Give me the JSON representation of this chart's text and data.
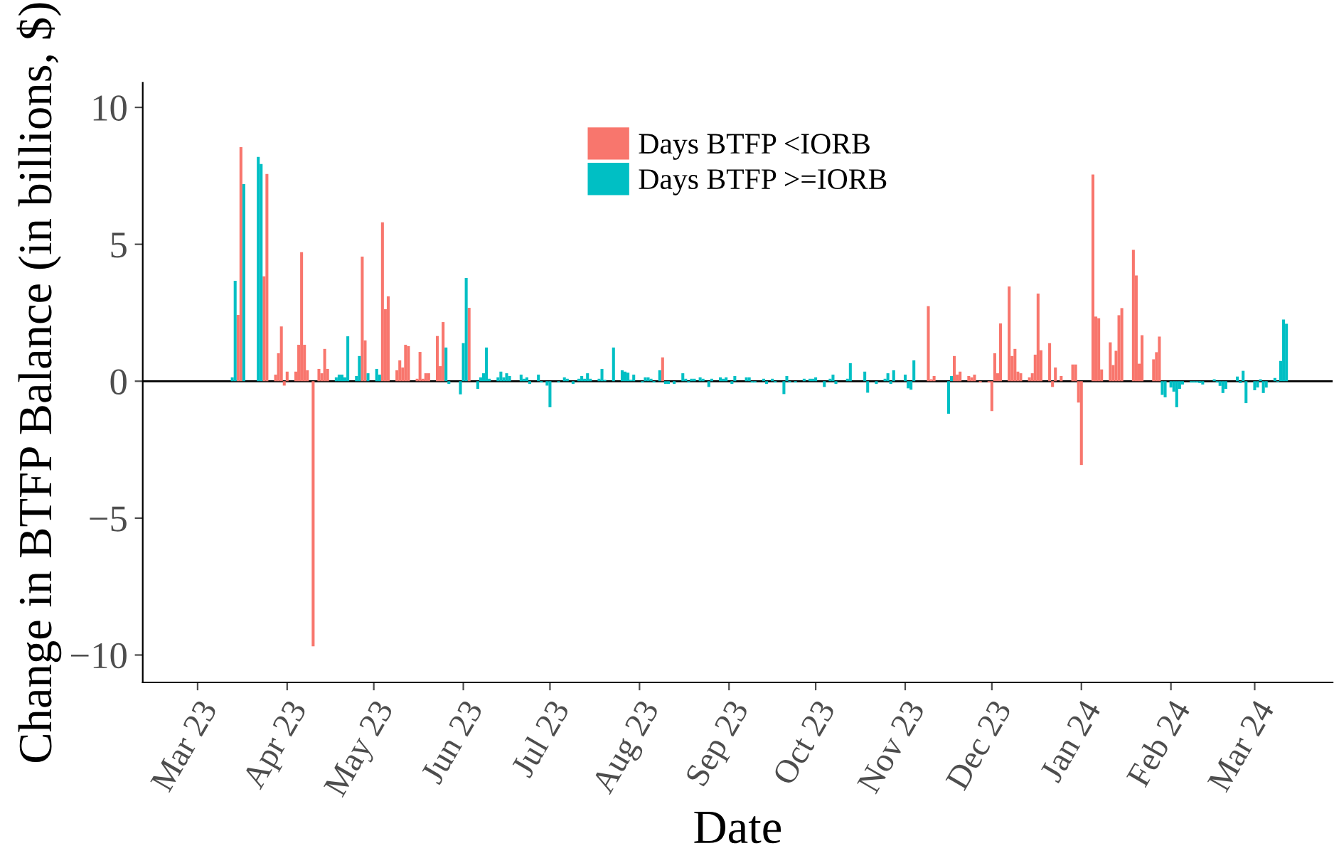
{
  "chart_data": {
    "type": "bar",
    "xlabel": "Date",
    "ylabel": "Change in BTFP Balance (in billions, $)",
    "xlim": [
      "2023-02-10",
      "2024-03-28"
    ],
    "ylim": [
      -11,
      10.9
    ],
    "yticks": [
      {
        "value": -10,
        "label": "−10"
      },
      {
        "value": -5,
        "label": "−5"
      },
      0,
      5,
      10
    ],
    "xticks": [
      {
        "value": "2023-03-01",
        "label": "Mar 23"
      },
      {
        "value": "2023-04-01",
        "label": "Apr 23"
      },
      {
        "value": "2023-05-01",
        "label": "May 23"
      },
      {
        "value": "2023-06-01",
        "label": "Jun 23"
      },
      {
        "value": "2023-07-01",
        "label": "Jul 23"
      },
      {
        "value": "2023-08-01",
        "label": "Aug 23"
      },
      {
        "value": "2023-09-01",
        "label": "Sep 23"
      },
      {
        "value": "2023-10-01",
        "label": "Oct 23"
      },
      {
        "value": "2023-11-01",
        "label": "Nov 23"
      },
      {
        "value": "2023-12-01",
        "label": "Dec 23"
      },
      {
        "value": "2024-01-01",
        "label": "Jan 24"
      },
      {
        "value": "2024-02-01",
        "label": "Feb 24"
      },
      {
        "value": "2024-03-01",
        "label": "Mar 24"
      }
    ],
    "grid": false,
    "legend": "top",
    "ref_lines": [
      {
        "axis": "y",
        "value": 0,
        "color": "#000000",
        "line_style": "solid"
      }
    ],
    "series": [
      {
        "name": "Days BTFP <IORB",
        "color": "#f8766d",
        "x": [
          "2023-03-15",
          "2023-03-16",
          "2023-03-24",
          "2023-03-25",
          "2023-03-28",
          "2023-03-29",
          "2023-03-30",
          "2023-03-31",
          "2023-04-01",
          "2023-04-04",
          "2023-04-05",
          "2023-04-06",
          "2023-04-07",
          "2023-04-08",
          "2023-04-10",
          "2023-04-12",
          "2023-04-13",
          "2023-04-14",
          "2023-04-15",
          "2023-04-27",
          "2023-04-28",
          "2023-05-04",
          "2023-05-05",
          "2023-05-06",
          "2023-05-09",
          "2023-05-10",
          "2023-05-11",
          "2023-05-12",
          "2023-05-13",
          "2023-05-16",
          "2023-05-17",
          "2023-05-18",
          "2023-05-19",
          "2023-05-20",
          "2023-05-23",
          "2023-05-24",
          "2023-05-25",
          "2023-06-03",
          "2023-08-09",
          "2023-11-09",
          "2023-11-10",
          "2023-11-11",
          "2023-11-18",
          "2023-11-19",
          "2023-11-20",
          "2023-11-23",
          "2023-11-24",
          "2023-11-25",
          "2023-11-27",
          "2023-11-30",
          "2023-12-01",
          "2023-12-02",
          "2023-12-03",
          "2023-12-04",
          "2023-12-07",
          "2023-12-08",
          "2023-12-09",
          "2023-12-10",
          "2023-12-11",
          "2023-12-14",
          "2023-12-15",
          "2023-12-16",
          "2023-12-17",
          "2023-12-18",
          "2023-12-21",
          "2023-12-22",
          "2023-12-23",
          "2023-12-25",
          "2023-12-29",
          "2023-12-30",
          "2023-12-31",
          "2024-01-01",
          "2024-01-05",
          "2024-01-06",
          "2024-01-07",
          "2024-01-08",
          "2024-01-11",
          "2024-01-12",
          "2024-01-13",
          "2024-01-14",
          "2024-01-15",
          "2024-01-19",
          "2024-01-20",
          "2024-01-21",
          "2024-01-22",
          "2024-01-26",
          "2024-01-27",
          "2024-01-28"
        ],
        "values": [
          2.42,
          8.55,
          3.83,
          7.57,
          0.24,
          1.02,
          2.0,
          -0.16,
          0.35,
          0.35,
          1.33,
          4.71,
          1.33,
          0.4,
          -9.68,
          0.45,
          0.29,
          1.18,
          0.45,
          4.55,
          1.49,
          5.8,
          2.63,
          3.1,
          0.4,
          0.76,
          0.5,
          1.33,
          1.28,
          0.09,
          1.07,
          0.09,
          0.29,
          0.29,
          1.65,
          0.55,
          2.16,
          2.68,
          0.87,
          2.74,
          0.07,
          0.19,
          0.92,
          0.24,
          0.35,
          0.19,
          0.14,
          0.24,
          -0.05,
          -0.05,
          -1.09,
          1.02,
          0.29,
          2.11,
          3.46,
          0.92,
          1.18,
          0.35,
          0.29,
          0.14,
          0.29,
          0.97,
          3.2,
          1.13,
          1.39,
          -0.21,
          0.5,
          0.19,
          0.61,
          0.61,
          -0.78,
          -3.06,
          7.55,
          2.36,
          2.3,
          0.43,
          1.42,
          0.59,
          1.11,
          2.41,
          2.67,
          4.8,
          3.86,
          0.64,
          1.68,
          0.8,
          1.06,
          1.63
        ]
      },
      {
        "name": "Days BTFP >=IORB",
        "color": "#00bfc4",
        "x": [
          "2023-03-13",
          "2023-03-14",
          "2023-03-17",
          "2023-03-22",
          "2023-03-23",
          "2023-04-18",
          "2023-04-19",
          "2023-04-20",
          "2023-04-21",
          "2023-04-22",
          "2023-04-25",
          "2023-04-26",
          "2023-04-29",
          "2023-05-02",
          "2023-05-03",
          "2023-05-26",
          "2023-05-27",
          "2023-05-31",
          "2023-06-01",
          "2023-06-02",
          "2023-06-06",
          "2023-06-07",
          "2023-06-08",
          "2023-06-09",
          "2023-06-10",
          "2023-06-13",
          "2023-06-14",
          "2023-06-15",
          "2023-06-16",
          "2023-06-17",
          "2023-06-21",
          "2023-06-22",
          "2023-06-23",
          "2023-06-24",
          "2023-06-27",
          "2023-06-28",
          "2023-06-30",
          "2023-07-01",
          "2023-07-04",
          "2023-07-06",
          "2023-07-07",
          "2023-07-09",
          "2023-07-11",
          "2023-07-12",
          "2023-07-13",
          "2023-07-14",
          "2023-07-15",
          "2023-07-18",
          "2023-07-19",
          "2023-07-20",
          "2023-07-23",
          "2023-07-26",
          "2023-07-27",
          "2023-07-28",
          "2023-07-29",
          "2023-07-30",
          "2023-08-02",
          "2023-08-03",
          "2023-08-04",
          "2023-08-05",
          "2023-08-06",
          "2023-08-08",
          "2023-08-10",
          "2023-08-11",
          "2023-08-13",
          "2023-08-16",
          "2023-08-17",
          "2023-08-18",
          "2023-08-19",
          "2023-08-20",
          "2023-08-22",
          "2023-08-23",
          "2023-08-25",
          "2023-08-26",
          "2023-08-29",
          "2023-08-30",
          "2023-08-31",
          "2023-09-02",
          "2023-09-03",
          "2023-09-07",
          "2023-09-08",
          "2023-09-09",
          "2023-09-10",
          "2023-09-13",
          "2023-09-14",
          "2023-09-16",
          "2023-09-17",
          "2023-09-20",
          "2023-09-21",
          "2023-09-22",
          "2023-09-24",
          "2023-09-27",
          "2023-09-29",
          "2023-09-30",
          "2023-10-01",
          "2023-10-04",
          "2023-10-06",
          "2023-10-07",
          "2023-10-08",
          "2023-10-12",
          "2023-10-13",
          "2023-10-18",
          "2023-10-19",
          "2023-10-22",
          "2023-10-25",
          "2023-10-26",
          "2023-10-27",
          "2023-10-28",
          "2023-11-01",
          "2023-11-02",
          "2023-11-03",
          "2023-11-04",
          "2023-11-16",
          "2023-11-17",
          "2024-01-29",
          "2024-01-30",
          "2024-02-01",
          "2024-02-02",
          "2024-02-03",
          "2024-02-04",
          "2024-02-05",
          "2024-02-08",
          "2024-02-09",
          "2024-02-10",
          "2024-02-11",
          "2024-02-12",
          "2024-02-16",
          "2024-02-17",
          "2024-02-18",
          "2024-02-19",
          "2024-02-20",
          "2024-02-24",
          "2024-02-25",
          "2024-02-26",
          "2024-02-27",
          "2024-03-01",
          "2024-03-02",
          "2024-03-03",
          "2024-03-04",
          "2024-03-05",
          "2024-03-08",
          "2024-03-09",
          "2024-03-10",
          "2024-03-11",
          "2024-03-12"
        ],
        "values": [
          0.14,
          3.67,
          7.2,
          8.19,
          7.93,
          0.14,
          0.24,
          0.24,
          0.14,
          1.64,
          0.19,
          0.92,
          0.29,
          0.45,
          0.24,
          1.23,
          -0.1,
          -0.48,
          1.39,
          3.77,
          -0.28,
          0.14,
          0.29,
          1.23,
          0.09,
          0.14,
          0.35,
          0.14,
          0.29,
          0.19,
          0.24,
          0.09,
          0.14,
          -0.1,
          0.24,
          -0.05,
          -0.16,
          -0.95,
          -0.05,
          0.14,
          0.09,
          -0.1,
          0.09,
          0.19,
          0.09,
          0.29,
          0.09,
          0.09,
          0.45,
          0.05,
          1.23,
          0.4,
          0.35,
          0.31,
          0.05,
          0.24,
          -0.05,
          0.14,
          0.14,
          0.09,
          -0.05,
          0.4,
          -0.1,
          -0.1,
          -0.1,
          0.29,
          0.09,
          -0.05,
          0.09,
          0.09,
          0.14,
          0.09,
          -0.21,
          0.09,
          0.14,
          0.09,
          0.14,
          -0.1,
          0.19,
          0.14,
          0.14,
          -0.05,
          -0.05,
          0.09,
          -0.1,
          0.09,
          -0.05,
          -0.47,
          0.19,
          -0.05,
          -0.05,
          0.09,
          0.09,
          0.09,
          0.14,
          -0.21,
          0.09,
          0.24,
          -0.1,
          0.09,
          0.66,
          0.35,
          -0.42,
          -0.1,
          0.09,
          0.29,
          -0.1,
          0.4,
          0.24,
          -0.26,
          -0.31,
          0.76,
          -1.19,
          0.19,
          -0.5,
          -0.59,
          -0.23,
          -0.38,
          -0.95,
          -0.28,
          -0.12,
          -0.05,
          -0.05,
          -0.05,
          -0.07,
          -0.12,
          0.07,
          -0.05,
          -0.17,
          -0.43,
          -0.28,
          0.17,
          -0.07,
          0.38,
          -0.8,
          -0.33,
          -0.23,
          0.07,
          -0.43,
          -0.23,
          0.12,
          -0.03,
          0.74,
          2.25,
          2.1
        ]
      }
    ]
  }
}
